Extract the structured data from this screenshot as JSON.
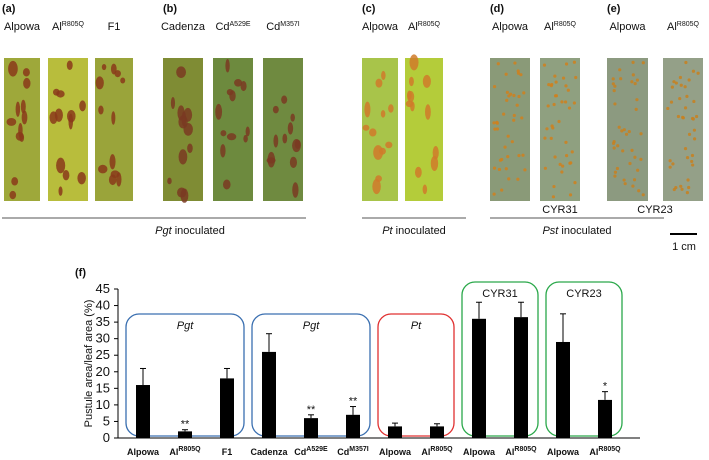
{
  "panels": [
    {
      "letter": "(a)",
      "leaves": [
        {
          "text": "Alpowa"
        },
        {
          "text": "Al",
          "sup": "R805Q"
        },
        {
          "text": "F1"
        }
      ]
    },
    {
      "letter": "(b)",
      "leaves": [
        {
          "text": "Cadenza"
        },
        {
          "text": "Cd",
          "sup": "A529E"
        },
        {
          "text": "Cd",
          "sup": "M357I"
        }
      ]
    },
    {
      "letter": "(c)",
      "leaves": [
        {
          "text": "Alpowa"
        },
        {
          "text": "Al",
          "sup": "R805Q"
        }
      ]
    },
    {
      "letter": "(d)",
      "leaves": [
        {
          "text": "Alpowa"
        },
        {
          "text": "Al",
          "sup": "R805Q"
        }
      ],
      "strain": "CYR31"
    },
    {
      "letter": "(e)",
      "leaves": [
        {
          "text": "Alpowa"
        },
        {
          "text": "Al",
          "sup": "R805Q"
        }
      ],
      "strain": "CYR23"
    }
  ],
  "inoculations": [
    {
      "italic": "Pgt",
      "text": " inoculated"
    },
    {
      "italic": "Pt",
      "text": " inoculated"
    },
    {
      "italic": "Pst",
      "text": " inoculated"
    }
  ],
  "scale": "1 cm",
  "chart_data": {
    "type": "bar",
    "panel": "(f)",
    "y_label": "Pustule  area/leaf area (%)",
    "categories": [
      {
        "text": "Alpowa"
      },
      {
        "text": "Al",
        "sup": "R805Q"
      },
      {
        "text": "F1"
      },
      {
        "text": "Cadenza"
      },
      {
        "text": "Cd",
        "sup": "A529E"
      },
      {
        "text": "Cd",
        "sup": "M357I"
      },
      {
        "text": "Alpowa"
      },
      {
        "text": "Al",
        "sup": "R805Q"
      },
      {
        "text": "Alpowa"
      },
      {
        "text": "Al",
        "sup": "R805Q"
      },
      {
        "text": "Alpowa"
      },
      {
        "text": "Al",
        "sup": "R805Q"
      }
    ],
    "values": [
      16,
      2,
      18,
      26,
      6,
      7,
      3.5,
      3.5,
      36,
      36.5,
      29,
      11.5
    ],
    "errors": [
      5,
      0.5,
      3,
      5.5,
      1,
      2.5,
      1,
      0.8,
      5,
      4.5,
      8.5,
      2.5
    ],
    "value_annotations": [
      null,
      "**",
      null,
      null,
      "**",
      "**",
      null,
      null,
      null,
      null,
      null,
      "*"
    ],
    "color": "#000000",
    "ylim": [
      0,
      45
    ],
    "yticks": [
      0,
      5,
      10,
      15,
      20,
      25,
      30,
      35,
      40,
      45
    ],
    "groups": [
      {
        "label": "Pgt",
        "italic": true,
        "color": "#3a6fb0",
        "first": 0,
        "last": 2
      },
      {
        "label": "Pgt",
        "italic": true,
        "color": "#3a6fb0",
        "first": 3,
        "last": 5
      },
      {
        "label": "Pt",
        "italic": true,
        "color": "#e03030",
        "first": 6,
        "last": 7
      },
      {
        "label": "CYR31",
        "italic": false,
        "color": "#2aa84a",
        "first": 8,
        "last": 9
      },
      {
        "label": "CYR23",
        "italic": false,
        "color": "#2aa84a",
        "first": 10,
        "last": 11
      }
    ]
  }
}
